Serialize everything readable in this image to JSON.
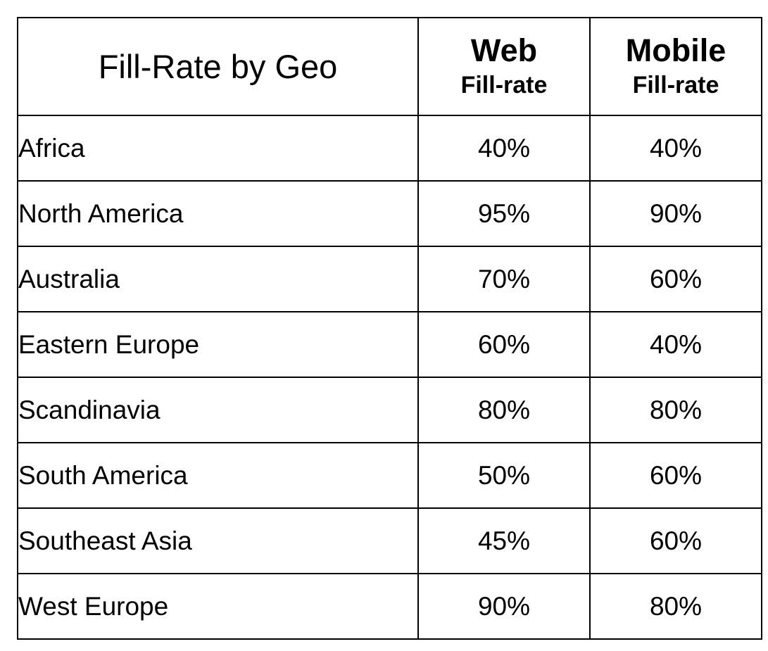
{
  "chart_data": {
    "type": "table",
    "title": "Fill-Rate by Geo",
    "columns": [
      {
        "main": "Web",
        "sub": "Fill-rate"
      },
      {
        "main": "Mobile",
        "sub": "Fill-rate"
      }
    ],
    "rows": [
      {
        "geo": "Africa",
        "web": "40%",
        "mobile": "40%"
      },
      {
        "geo": "North America",
        "web": "95%",
        "mobile": "90%"
      },
      {
        "geo": "Australia",
        "web": "70%",
        "mobile": "60%"
      },
      {
        "geo": "Eastern Europe",
        "web": "60%",
        "mobile": "40%"
      },
      {
        "geo": "Scandinavia",
        "web": "80%",
        "mobile": "80%"
      },
      {
        "geo": "South America",
        "web": "50%",
        "mobile": "60%"
      },
      {
        "geo": "Southeast Asia",
        "web": "45%",
        "mobile": "60%"
      },
      {
        "geo": "West Europe",
        "web": "90%",
        "mobile": "80%"
      }
    ]
  }
}
